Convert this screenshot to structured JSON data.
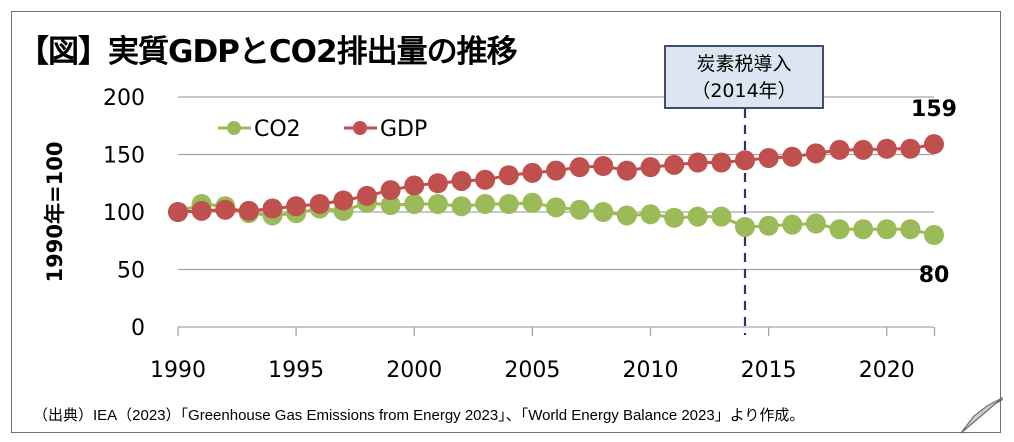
{
  "chart_data": {
    "type": "line",
    "title": "【図】実質GDPとCO2排出量の推移",
    "xlabel": "",
    "ylabel": "1990年=100",
    "ylim": [
      0,
      200
    ],
    "yticks": [
      0,
      50,
      100,
      150,
      200
    ],
    "xlim": [
      1990,
      2022
    ],
    "xticks": [
      1990,
      1995,
      2000,
      2005,
      2010,
      2015,
      2020
    ],
    "grid": true,
    "legend_position": "top-left",
    "x": [
      1990,
      1991,
      1992,
      1993,
      1994,
      1995,
      1996,
      1997,
      1998,
      1999,
      2000,
      2001,
      2002,
      2003,
      2004,
      2005,
      2006,
      2007,
      2008,
      2009,
      2010,
      2011,
      2012,
      2013,
      2014,
      2015,
      2016,
      2017,
      2018,
      2019,
      2020,
      2021,
      2022
    ],
    "series": [
      {
        "name": "CO2",
        "color": "#9bbb59",
        "values": [
          100,
          107,
          105,
          99,
          97,
          99,
          103,
          101,
          108,
          106,
          107,
          107,
          105,
          107,
          107,
          108,
          104,
          102,
          100,
          97,
          98,
          95,
          96,
          96,
          87,
          88,
          89,
          90,
          85,
          85,
          85,
          85,
          80
        ]
      },
      {
        "name": "GDP",
        "color": "#c0504d",
        "values": [
          100,
          101,
          102,
          101,
          103,
          105,
          107,
          110,
          114,
          119,
          123,
          125,
          127,
          128,
          132,
          134,
          136,
          139,
          140,
          136,
          139,
          141,
          143,
          143,
          145,
          147,
          148,
          151,
          154,
          154,
          155,
          155,
          159
        ]
      }
    ],
    "annotations": [
      {
        "type": "vline",
        "x": 2014,
        "style": "dashed",
        "color": "#1f3864",
        "label_line1": "炭素税導入",
        "label_line2": "（2014年）"
      },
      {
        "type": "end-label",
        "series": "GDP",
        "text": "159"
      },
      {
        "type": "end-label",
        "series": "CO2",
        "text": "80"
      }
    ],
    "source": "（出典）IEA（2023）「Greenhouse Gas Emissions from Energy 2023」、「World Energy Balance 2023」より作成。"
  }
}
